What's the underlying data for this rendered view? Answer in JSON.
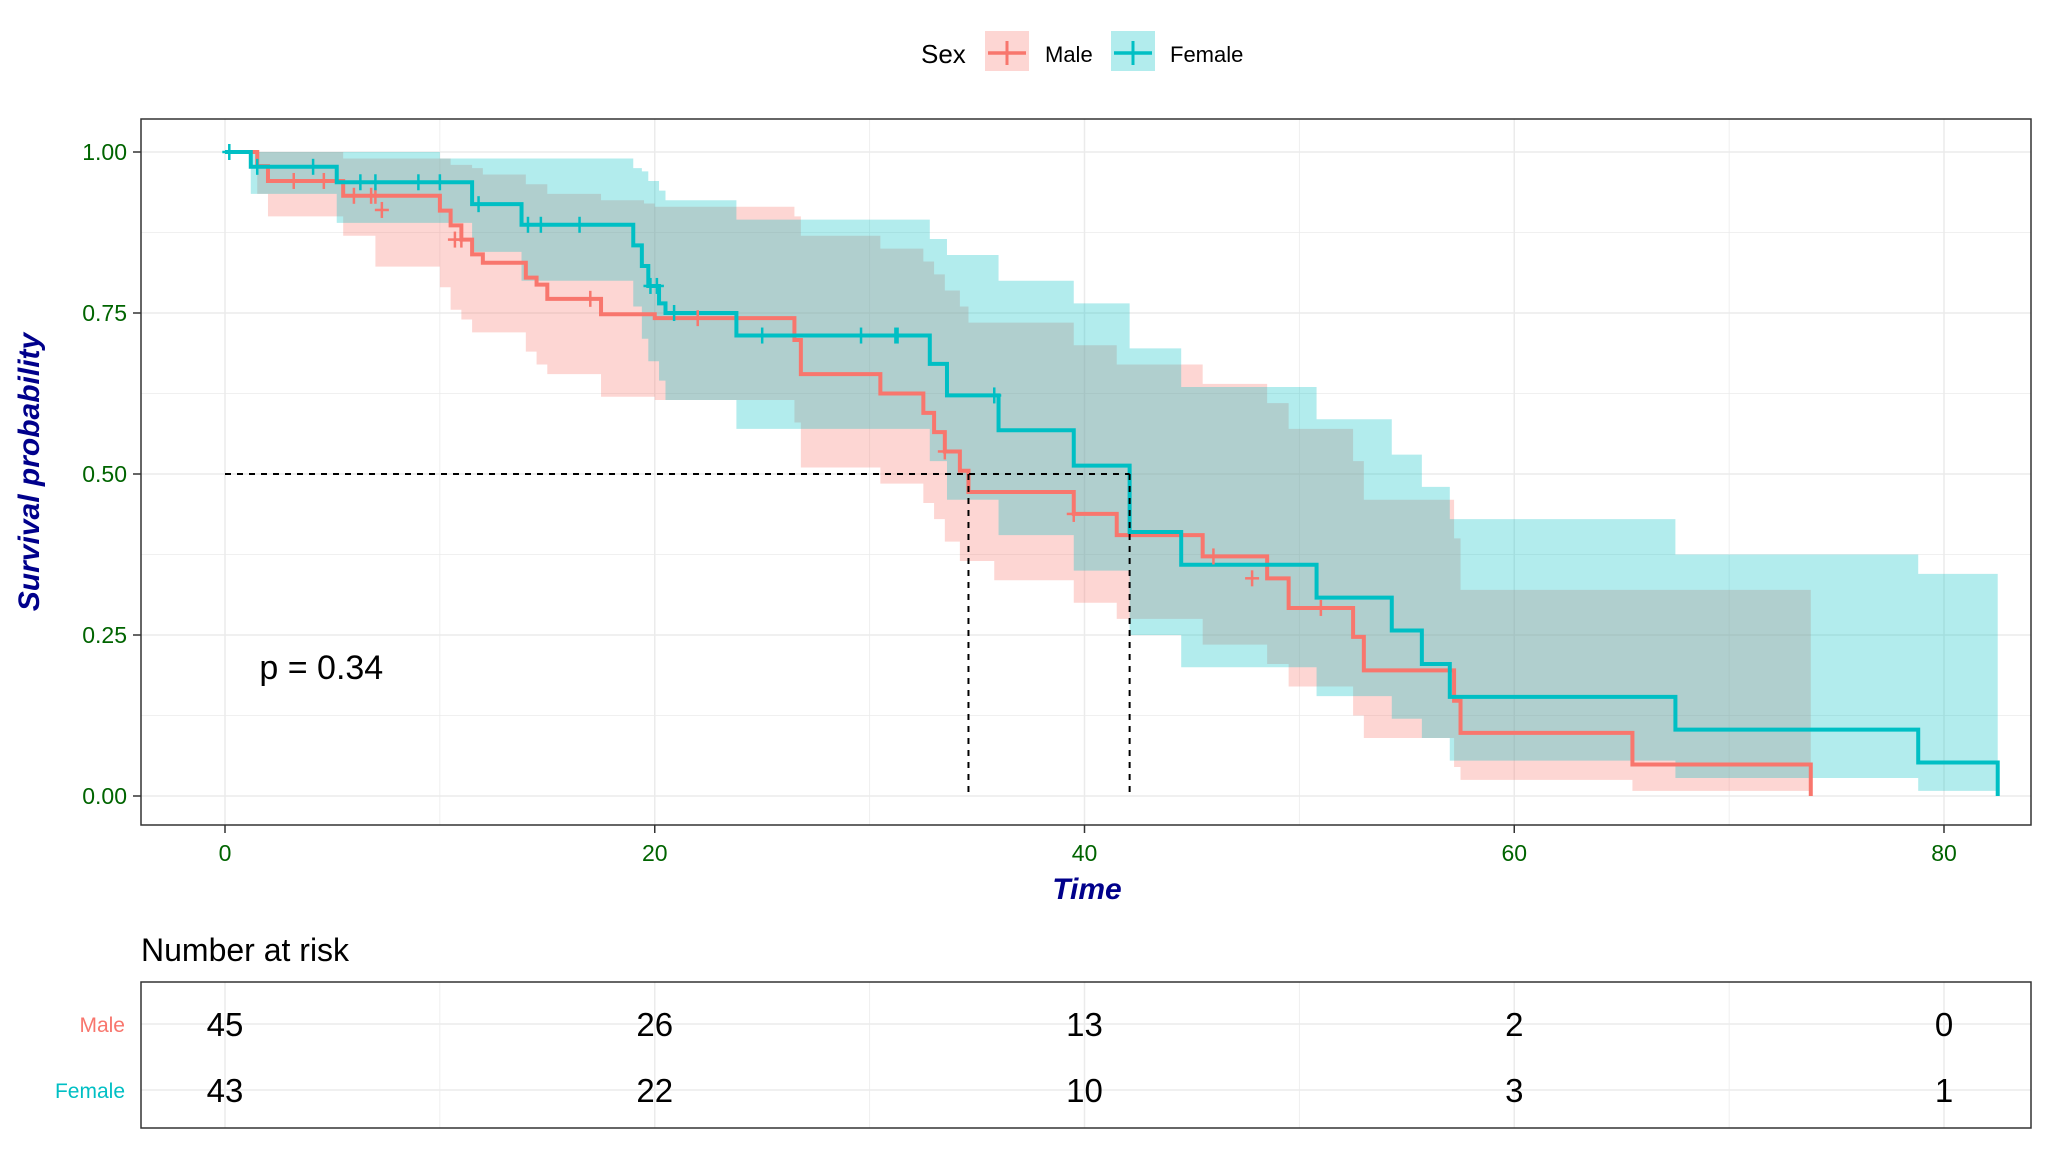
{
  "legend": {
    "title": "Sex",
    "items": [
      {
        "label": "Male",
        "color": "#F8766D"
      },
      {
        "label": "Female",
        "color": "#00BFC4"
      }
    ]
  },
  "colors": {
    "male": "#F8766D",
    "female": "#00BFC4",
    "axis_label": "#00008B",
    "tick_label": "#006400",
    "grid": "#EBEBEB"
  },
  "chart_data": [
    {
      "type": "line",
      "subtype": "kaplan-meier",
      "xlabel": "Time",
      "ylabel": "Survival probability",
      "xlim": [
        0,
        82.5
      ],
      "ylim": [
        0,
        1
      ],
      "xticks": [
        0,
        20,
        40,
        60,
        80
      ],
      "yticks": [
        0,
        0.25,
        0.5,
        0.75,
        1
      ],
      "xtick_labels": [
        "0",
        "20",
        "40",
        "60",
        "80"
      ],
      "ytick_labels": [
        "0.00",
        "0.25",
        "0.50",
        "0.75",
        "1.00"
      ],
      "grid": true,
      "legend_position": "top",
      "annotation": "p = 0.34",
      "annotation_pos": {
        "x": 1.6,
        "y": 0.2
      },
      "median_lines": {
        "y": 0.5,
        "x": [
          34.6,
          42.1
        ]
      },
      "series": [
        {
          "name": "Male",
          "color": "#F8766D",
          "steps": [
            [
              0,
              1.0
            ],
            [
              1.5,
              0.978
            ],
            [
              2.0,
              0.955
            ],
            [
              5.5,
              0.932
            ],
            [
              6.5,
              0.932
            ],
            [
              10.0,
              0.909
            ],
            [
              10.5,
              0.886
            ],
            [
              11.0,
              0.864
            ],
            [
              11.5,
              0.841
            ],
            [
              12.0,
              0.828
            ],
            [
              14.0,
              0.805
            ],
            [
              14.5,
              0.794
            ],
            [
              15.0,
              0.772
            ],
            [
              17.5,
              0.748
            ],
            [
              19.5,
              0.748
            ],
            [
              20.0,
              0.742
            ],
            [
              26.5,
              0.708
            ],
            [
              26.8,
              0.655
            ],
            [
              30.5,
              0.625
            ],
            [
              32.5,
              0.595
            ],
            [
              33.0,
              0.565
            ],
            [
              33.5,
              0.535
            ],
            [
              34.2,
              0.505
            ],
            [
              34.6,
              0.472
            ],
            [
              39.5,
              0.438
            ],
            [
              41.5,
              0.405
            ],
            [
              45.5,
              0.372
            ],
            [
              48.5,
              0.338
            ],
            [
              49.5,
              0.292
            ],
            [
              52.5,
              0.247
            ],
            [
              53.0,
              0.195
            ],
            [
              57.2,
              0.148
            ],
            [
              57.5,
              0.098
            ],
            [
              65.5,
              0.049
            ],
            [
              73.8,
              0.0
            ]
          ],
          "ci_upper": [
            [
              0,
              1.0
            ],
            [
              1.5,
              1.0
            ],
            [
              5.5,
              0.99
            ],
            [
              10.0,
              0.99
            ],
            [
              10.5,
              0.98
            ],
            [
              11.5,
              0.975
            ],
            [
              12.0,
              0.965
            ],
            [
              14.0,
              0.95
            ],
            [
              15.0,
              0.935
            ],
            [
              17.5,
              0.925
            ],
            [
              19.5,
              0.92
            ],
            [
              20.0,
              0.915
            ],
            [
              26.5,
              0.9
            ],
            [
              26.8,
              0.87
            ],
            [
              30.5,
              0.85
            ],
            [
              32.5,
              0.83
            ],
            [
              33.0,
              0.81
            ],
            [
              33.5,
              0.785
            ],
            [
              34.2,
              0.76
            ],
            [
              34.6,
              0.735
            ],
            [
              39.5,
              0.7
            ],
            [
              41.5,
              0.67
            ],
            [
              45.5,
              0.64
            ],
            [
              48.5,
              0.61
            ],
            [
              49.5,
              0.57
            ],
            [
              52.5,
              0.52
            ],
            [
              53.0,
              0.46
            ],
            [
              57.2,
              0.4
            ],
            [
              57.5,
              0.32
            ],
            [
              65.5,
              0.32
            ],
            [
              73.8,
              0.32
            ]
          ],
          "ci_lower": [
            [
              0,
              1.0
            ],
            [
              1.5,
              0.935
            ],
            [
              2.0,
              0.9
            ],
            [
              5.5,
              0.87
            ],
            [
              7.0,
              0.822
            ],
            [
              10.0,
              0.79
            ],
            [
              10.5,
              0.755
            ],
            [
              11.0,
              0.74
            ],
            [
              11.5,
              0.72
            ],
            [
              14.0,
              0.69
            ],
            [
              14.5,
              0.67
            ],
            [
              15.0,
              0.655
            ],
            [
              17.5,
              0.62
            ],
            [
              20.0,
              0.615
            ],
            [
              26.5,
              0.58
            ],
            [
              26.8,
              0.51
            ],
            [
              30.5,
              0.485
            ],
            [
              32.5,
              0.455
            ],
            [
              33.0,
              0.43
            ],
            [
              33.5,
              0.395
            ],
            [
              34.2,
              0.365
            ],
            [
              35.8,
              0.335
            ],
            [
              39.5,
              0.3
            ],
            [
              41.5,
              0.275
            ],
            [
              45.5,
              0.235
            ],
            [
              48.5,
              0.205
            ],
            [
              49.5,
              0.17
            ],
            [
              52.5,
              0.125
            ],
            [
              53.0,
              0.09
            ],
            [
              57.2,
              0.045
            ],
            [
              57.5,
              0.025
            ],
            [
              65.5,
              0.008
            ],
            [
              73.8,
              0.008
            ]
          ],
          "censored": [
            [
              3.2,
              0.955
            ],
            [
              4.6,
              0.955
            ],
            [
              6.0,
              0.932
            ],
            [
              6.8,
              0.932
            ],
            [
              7.0,
              0.932
            ],
            [
              7.3,
              0.91
            ],
            [
              10.7,
              0.864
            ],
            [
              11.0,
              0.864
            ],
            [
              17.0,
              0.772
            ],
            [
              22.0,
              0.742
            ],
            [
              33.5,
              0.535
            ],
            [
              39.5,
              0.438
            ],
            [
              46.0,
              0.372
            ],
            [
              47.8,
              0.338
            ],
            [
              51.0,
              0.292
            ]
          ]
        },
        {
          "name": "Female",
          "color": "#00BFC4",
          "steps": [
            [
              0,
              1.0
            ],
            [
              1.2,
              0.977
            ],
            [
              5.2,
              0.953
            ],
            [
              11.5,
              0.919
            ],
            [
              13.8,
              0.887
            ],
            [
              19.0,
              0.855
            ],
            [
              19.4,
              0.823
            ],
            [
              19.7,
              0.792
            ],
            [
              20.2,
              0.765
            ],
            [
              20.5,
              0.75
            ],
            [
              23.8,
              0.715
            ],
            [
              32.8,
              0.671
            ],
            [
              33.6,
              0.622
            ],
            [
              36.0,
              0.568
            ],
            [
              39.5,
              0.513
            ],
            [
              42.1,
              0.41
            ],
            [
              44.5,
              0.359
            ],
            [
              50.8,
              0.308
            ],
            [
              54.3,
              0.257
            ],
            [
              55.7,
              0.205
            ],
            [
              57.0,
              0.154
            ],
            [
              67.5,
              0.103
            ],
            [
              78.8,
              0.052
            ],
            [
              82.5,
              0.0
            ]
          ],
          "ci_upper": [
            [
              0,
              1.0
            ],
            [
              1.2,
              1.0
            ],
            [
              5.2,
              1.0
            ],
            [
              10.0,
              0.99
            ],
            [
              11.5,
              0.99
            ],
            [
              18.5,
              0.99
            ],
            [
              19.0,
              0.975
            ],
            [
              19.4,
              0.97
            ],
            [
              19.7,
              0.955
            ],
            [
              20.2,
              0.94
            ],
            [
              20.5,
              0.925
            ],
            [
              23.8,
              0.895
            ],
            [
              32.8,
              0.865
            ],
            [
              33.6,
              0.84
            ],
            [
              36.0,
              0.8
            ],
            [
              39.5,
              0.765
            ],
            [
              42.1,
              0.695
            ],
            [
              44.5,
              0.635
            ],
            [
              50.8,
              0.585
            ],
            [
              54.3,
              0.53
            ],
            [
              55.7,
              0.48
            ],
            [
              57.0,
              0.43
            ],
            [
              67.5,
              0.375
            ],
            [
              78.8,
              0.345
            ],
            [
              82.5,
              0.345
            ]
          ],
          "ci_lower": [
            [
              0,
              1.0
            ],
            [
              1.2,
              0.935
            ],
            [
              5.2,
              0.89
            ],
            [
              11.5,
              0.845
            ],
            [
              13.8,
              0.8
            ],
            [
              19.0,
              0.76
            ],
            [
              19.4,
              0.71
            ],
            [
              19.7,
              0.675
            ],
            [
              20.2,
              0.645
            ],
            [
              20.5,
              0.615
            ],
            [
              23.8,
              0.57
            ],
            [
              32.8,
              0.52
            ],
            [
              33.6,
              0.46
            ],
            [
              36.0,
              0.405
            ],
            [
              39.5,
              0.35
            ],
            [
              42.1,
              0.25
            ],
            [
              44.5,
              0.2
            ],
            [
              50.8,
              0.155
            ],
            [
              54.3,
              0.12
            ],
            [
              55.7,
              0.09
            ],
            [
              57.0,
              0.055
            ],
            [
              67.5,
              0.028
            ],
            [
              78.8,
              0.008
            ],
            [
              82.5,
              0.008
            ]
          ],
          "censored": [
            [
              0.2,
              1.0
            ],
            [
              1.5,
              0.977
            ],
            [
              4.1,
              0.977
            ],
            [
              6.3,
              0.953
            ],
            [
              7.0,
              0.953
            ],
            [
              9.0,
              0.953
            ],
            [
              10.0,
              0.953
            ],
            [
              11.8,
              0.919
            ],
            [
              14.1,
              0.887
            ],
            [
              14.7,
              0.887
            ],
            [
              16.5,
              0.887
            ],
            [
              19.8,
              0.792
            ],
            [
              20.1,
              0.792
            ],
            [
              20.9,
              0.75
            ],
            [
              25.0,
              0.715
            ],
            [
              29.6,
              0.715
            ],
            [
              31.2,
              0.715
            ],
            [
              31.3,
              0.715
            ],
            [
              35.8,
              0.622
            ]
          ]
        }
      ]
    },
    {
      "type": "table",
      "title": "Number at risk",
      "columns_at_time": [
        0,
        20,
        40,
        60,
        80
      ],
      "rows": [
        {
          "name": "Male",
          "color": "#F8766D",
          "values": [
            "45",
            "26",
            "13",
            "2",
            "0"
          ]
        },
        {
          "name": "Female",
          "color": "#00BFC4",
          "values": [
            "43",
            "22",
            "10",
            "3",
            "1"
          ]
        }
      ]
    }
  ]
}
